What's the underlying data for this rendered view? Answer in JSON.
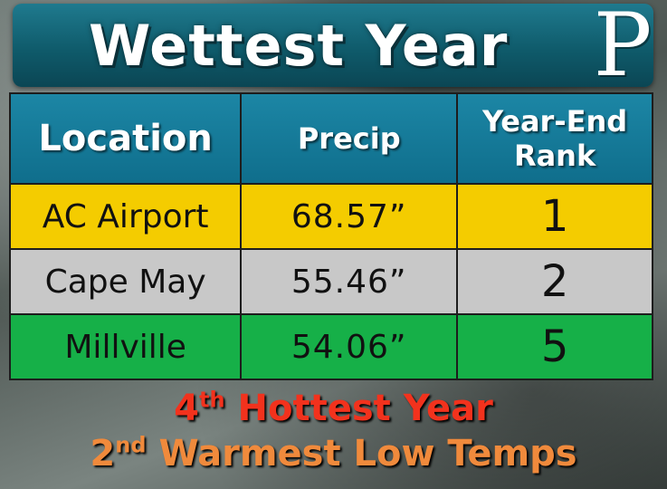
{
  "header": {
    "title": "Wettest Year",
    "logo_letter": "P"
  },
  "table": {
    "columns": [
      "Location",
      "Precip",
      "Year-End Rank"
    ],
    "rows": [
      {
        "location": "AC Airport",
        "precip": "68.57”",
        "rank": "1",
        "color": "#f4cc00"
      },
      {
        "location": "Cape May",
        "precip": "55.46”",
        "rank": "2",
        "color": "#c8c8c8"
      },
      {
        "location": "Millville",
        "precip": "54.06”",
        "rank": "5",
        "color": "#16b048"
      }
    ],
    "header_color": "#0f6e8c"
  },
  "footer": {
    "line1": {
      "number": "4",
      "suffix": "th",
      "text": " Hottest Year",
      "color": "#f2321d"
    },
    "line2": {
      "number": "2",
      "suffix": "nd",
      "text": " Warmest Low Temps",
      "color": "#f08a3c"
    }
  }
}
